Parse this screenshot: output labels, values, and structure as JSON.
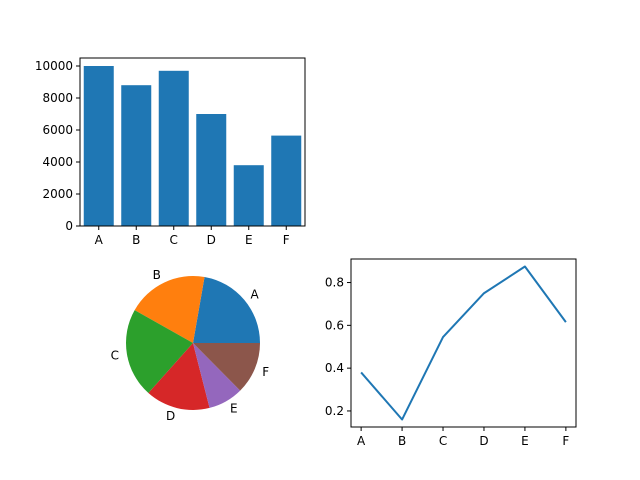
{
  "chart_data": [
    {
      "type": "bar",
      "categories": [
        "A",
        "B",
        "C",
        "D",
        "E",
        "F"
      ],
      "values": [
        10000,
        8800,
        9700,
        7000,
        3800,
        5650
      ],
      "ylim": [
        0,
        10500
      ],
      "yticks": [
        0,
        2000,
        4000,
        6000,
        8000,
        10000
      ],
      "color": "#1f77b4",
      "grid": false,
      "title": "",
      "xlabel": "",
      "ylabel": ""
    },
    {
      "type": "pie",
      "labels": [
        "A",
        "B",
        "C",
        "D",
        "E",
        "F"
      ],
      "values": [
        10000,
        8800,
        9700,
        7000,
        3800,
        5650
      ],
      "colors": [
        "#1f77b4",
        "#ff7f0e",
        "#2ca02c",
        "#d62728",
        "#9467bd",
        "#8c564b"
      ],
      "start_angle_deg": 0,
      "direction": "counterclockwise"
    },
    {
      "type": "line",
      "categories": [
        "A",
        "B",
        "C",
        "D",
        "E",
        "F"
      ],
      "values": [
        0.38,
        0.16,
        0.545,
        0.75,
        0.875,
        0.615
      ],
      "ylim": [
        0.125,
        0.91
      ],
      "yticks": [
        0.2,
        0.4,
        0.6,
        0.8
      ],
      "color": "#1f77b4",
      "grid": false,
      "title": "",
      "xlabel": "",
      "ylabel": ""
    }
  ]
}
